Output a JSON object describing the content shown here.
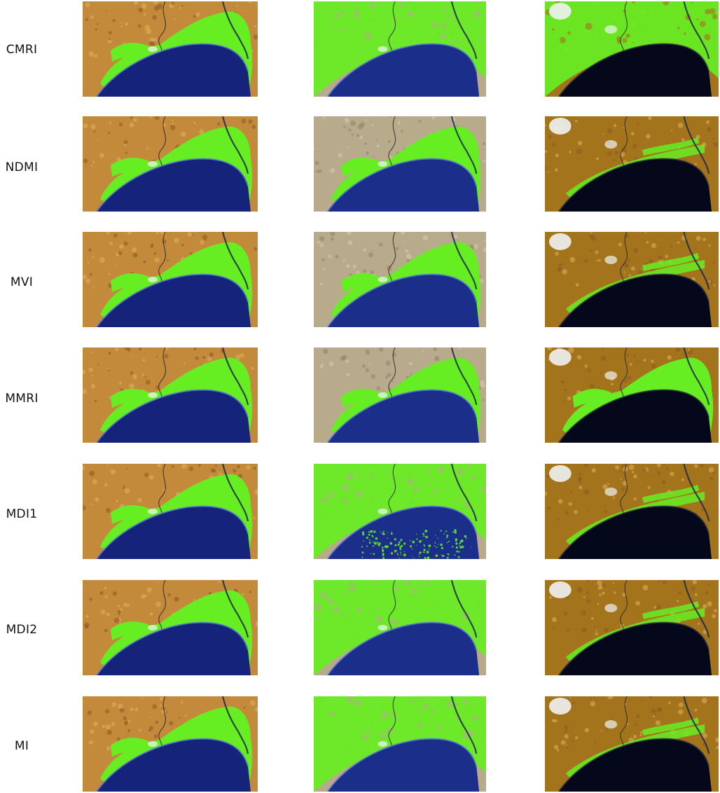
{
  "rows": [
    {
      "label": "CMRI"
    },
    {
      "label": "NDMI"
    },
    {
      "label": "MVI"
    },
    {
      "label": "MMRI"
    },
    {
      "label": "MDI1"
    },
    {
      "label": "MDI2"
    },
    {
      "label": "MI"
    }
  ],
  "colors": {
    "mangrove": "#66ee22",
    "land_col1": "#c48a3c",
    "land_col2": "#b7ab8c",
    "land_col3": "#a4741c",
    "sea_col1": "#16237a",
    "sea_col2": "#1a2e8a",
    "sea_col3": "#05081a",
    "cloud": "#eef2f2"
  }
}
